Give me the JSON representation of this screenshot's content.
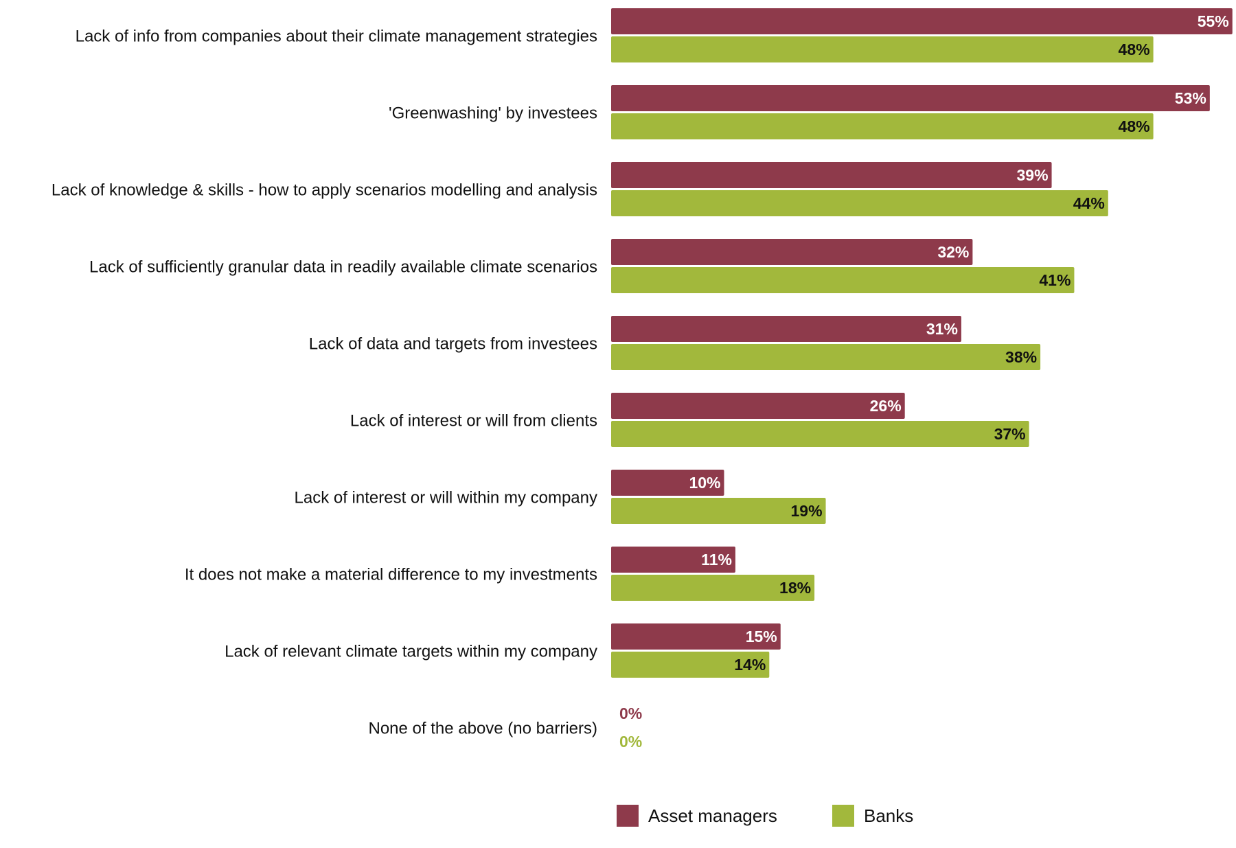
{
  "chart_data": {
    "type": "bar",
    "orientation": "horizontal",
    "title": "",
    "xlabel": "",
    "ylabel": "",
    "xlim": [
      0,
      55
    ],
    "grid": false,
    "legend_position": "bottom",
    "value_suffix": "%",
    "categories": [
      "Lack of info from companies about their climate management strategies",
      "'Greenwashing' by investees",
      "Lack of knowledge & skills - how to apply scenarios modelling and analysis",
      "Lack of sufficiently granular data in readily available climate scenarios",
      "Lack of data and targets from investees",
      "Lack of interest or will from clients",
      "Lack of interest or will within my company",
      "It does not make a material difference to my investments",
      "Lack of relevant climate targets within my company",
      "None of the above (no barriers)"
    ],
    "series": [
      {
        "name": "Asset managers",
        "color": "#8e3a4b",
        "label_color": "#ffffff",
        "values": [
          55,
          53,
          39,
          32,
          31,
          26,
          10,
          11,
          15,
          0
        ]
      },
      {
        "name": "Banks",
        "color": "#a2b83c",
        "label_color": "#111111",
        "values": [
          48,
          48,
          44,
          41,
          38,
          37,
          19,
          18,
          14,
          0
        ]
      }
    ]
  }
}
